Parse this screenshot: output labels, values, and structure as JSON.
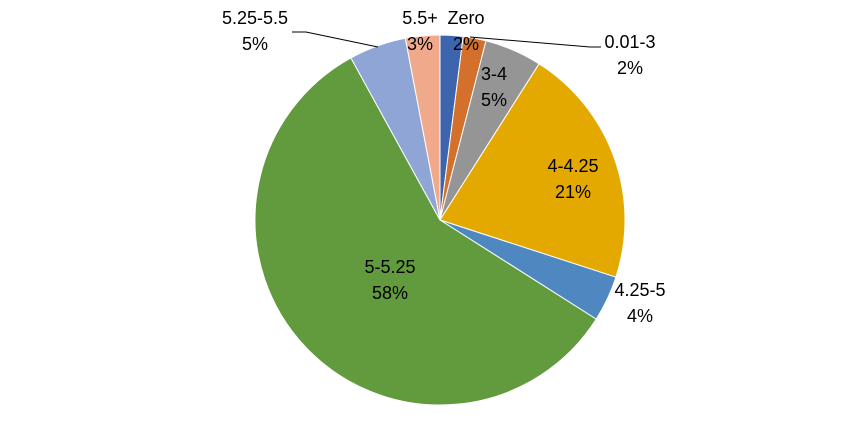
{
  "chart_data": {
    "type": "pie",
    "title": "",
    "start": "top",
    "direction": "clockwise",
    "slices": [
      {
        "label": "Zero",
        "value": 2,
        "value_label": "2%",
        "color": "#3d65ad"
      },
      {
        "label": "0.01-3",
        "value": 2,
        "value_label": "2%",
        "color": "#d2702c"
      },
      {
        "label": "3-4",
        "value": 5,
        "value_label": "5%",
        "color": "#959595"
      },
      {
        "label": "4-4.25",
        "value": 21,
        "value_label": "21%",
        "color": "#e3a900"
      },
      {
        "label": "4.25-5",
        "value": 4,
        "value_label": "4%",
        "color": "#4f87c0"
      },
      {
        "label": "5-5.25",
        "value": 58,
        "value_label": "58%",
        "color": "#629a3e"
      },
      {
        "label": "5.25-5.5",
        "value": 5,
        "value_label": "5%",
        "color": "#8fa5d6"
      },
      {
        "label": "5.5+",
        "value": 3,
        "value_label": "3%",
        "color": "#f0a98b"
      }
    ]
  }
}
